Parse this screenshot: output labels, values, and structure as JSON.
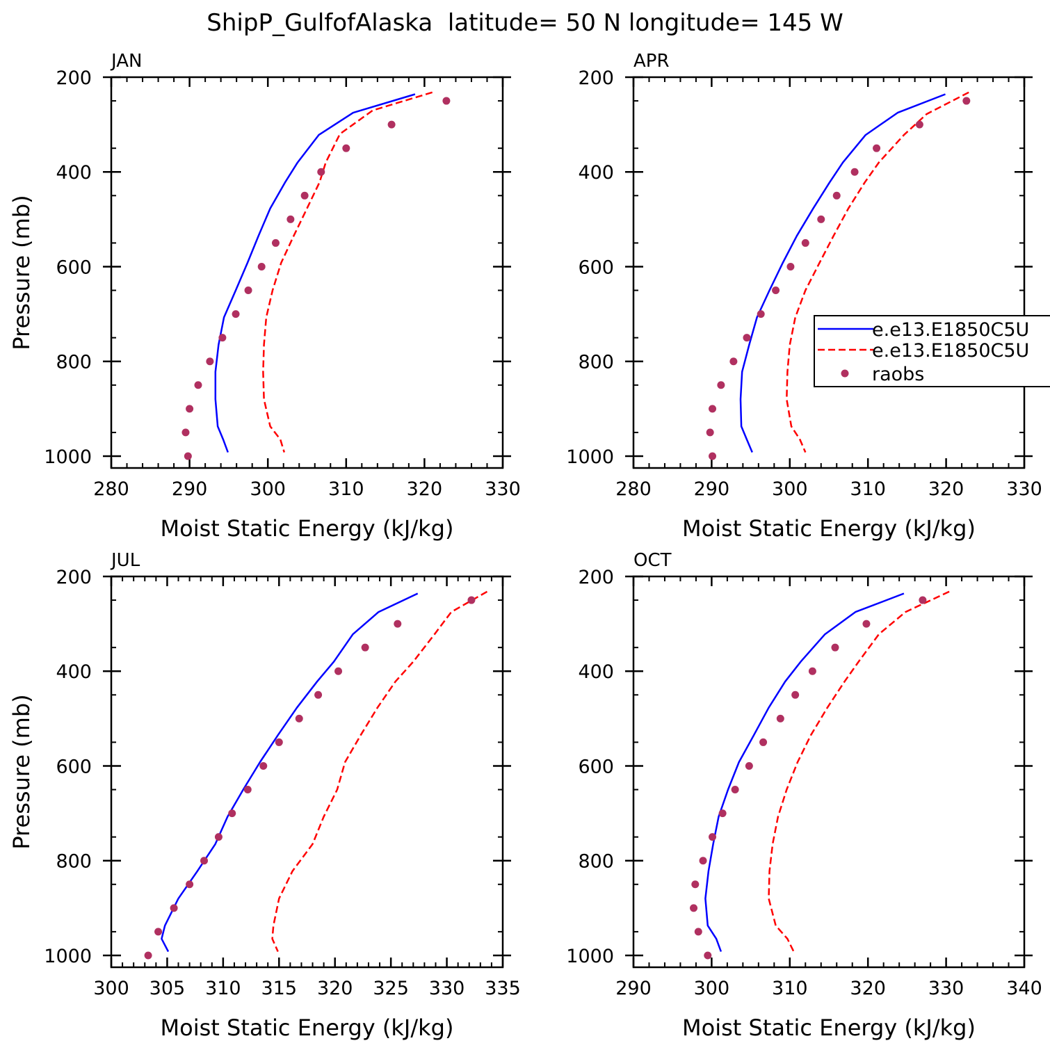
{
  "title": "ShipP_GulfofAlaska  latitude= 50 N longitude= 145 W",
  "legend": {
    "entries": [
      {
        "label": "e.e13.E1850C5U",
        "color": "#0000ff",
        "style": "solid"
      },
      {
        "label": "e.e13.E1850C5U",
        "color": "#ff0000",
        "style": "dashed"
      },
      {
        "label": "raobs",
        "color": "#b03060",
        "style": "marker"
      }
    ]
  },
  "colors": {
    "model_solid": "#0000ff",
    "model_dashed": "#ff0000",
    "raobs": "#b03060"
  },
  "chart_data": [
    {
      "type": "line",
      "panel_label": "JAN",
      "xlabel": "Moist Static Energy (kJ/kg)",
      "ylabel": "Pressure (mb)",
      "xlim": [
        280,
        330
      ],
      "ylim": [
        1025,
        200
      ],
      "xticks": [
        280,
        290,
        300,
        310,
        320,
        330
      ],
      "yticks": [
        200,
        400,
        600,
        800,
        1000
      ],
      "series": [
        {
          "style": "solid",
          "x": [
            318.8,
            310.9,
            306.5,
            303.8,
            302.2,
            300.3,
            298.8,
            297.4,
            295.9,
            294.4,
            293.7,
            293.3,
            293.3,
            293.6,
            294.3,
            294.9
          ],
          "y": [
            236,
            275,
            322,
            380,
            422,
            477,
            535,
            592,
            650,
            707,
            765,
            822,
            880,
            937,
            965,
            992
          ]
        },
        {
          "style": "dashed",
          "x": [
            321.0,
            313.4,
            309.2,
            307.4,
            306.6,
            305.0,
            303.3,
            301.7,
            300.6,
            299.8,
            299.5,
            299.4,
            299.5,
            300.3,
            301.6,
            302.1
          ],
          "y": [
            232,
            270,
            320,
            380,
            422,
            477,
            535,
            592,
            650,
            707,
            765,
            822,
            880,
            937,
            965,
            992
          ]
        }
      ],
      "points": {
        "x": [
          322.8,
          315.8,
          310.0,
          306.8,
          304.7,
          302.9,
          301.0,
          299.2,
          297.5,
          295.9,
          294.2,
          292.6,
          291.1,
          290.0,
          289.5,
          289.8
        ],
        "y": [
          250,
          300,
          350,
          400,
          450,
          500,
          550,
          600,
          650,
          700,
          750,
          800,
          850,
          900,
          950,
          1000
        ]
      }
    },
    {
      "type": "line",
      "panel_label": "APR",
      "xlabel": "Moist Static Energy (kJ/kg)",
      "ylabel": "",
      "xlim": [
        280,
        330
      ],
      "ylim": [
        1025,
        200
      ],
      "xticks": [
        280,
        290,
        300,
        310,
        320,
        330
      ],
      "yticks": [
        200,
        400,
        600,
        800,
        1000
      ],
      "series": [
        {
          "style": "solid",
          "x": [
            319.9,
            313.8,
            309.7,
            306.8,
            305.1,
            303.0,
            300.9,
            299.1,
            297.4,
            295.8,
            294.8,
            293.9,
            293.7,
            293.8,
            294.5,
            295.2
          ],
          "y": [
            236,
            275,
            322,
            380,
            422,
            477,
            535,
            592,
            650,
            707,
            765,
            822,
            880,
            937,
            965,
            992
          ]
        },
        {
          "style": "dashed",
          "x": [
            322.9,
            317.5,
            314.6,
            311.4,
            309.6,
            307.5,
            305.6,
            303.8,
            302.0,
            300.7,
            300.0,
            299.7,
            299.6,
            300.2,
            301.3,
            302.0
          ],
          "y": [
            232,
            278,
            322,
            380,
            422,
            477,
            535,
            592,
            650,
            707,
            765,
            822,
            880,
            937,
            965,
            992
          ]
        }
      ],
      "points": {
        "x": [
          322.6,
          316.6,
          311.1,
          308.3,
          306.0,
          304.0,
          302.0,
          300.1,
          298.2,
          296.3,
          294.5,
          292.8,
          291.2,
          290.1,
          289.8,
          290.1
        ],
        "y": [
          250,
          300,
          350,
          400,
          450,
          500,
          550,
          600,
          650,
          700,
          750,
          800,
          850,
          900,
          950,
          1000
        ]
      }
    },
    {
      "type": "line",
      "panel_label": "JUL",
      "xlabel": "Moist Static Energy (kJ/kg)",
      "ylabel": "Pressure (mb)",
      "xlim": [
        300,
        335
      ],
      "ylim": [
        1025,
        200
      ],
      "xticks": [
        300,
        305,
        310,
        315,
        320,
        325,
        330,
        335
      ],
      "yticks": [
        200,
        400,
        600,
        800,
        1000
      ],
      "series": [
        {
          "style": "solid",
          "x": [
            327.4,
            323.9,
            321.6,
            319.9,
            318.4,
            316.6,
            314.9,
            313.3,
            311.8,
            310.4,
            309.3,
            307.7,
            306.0,
            304.8,
            304.5,
            305.1
          ],
          "y": [
            236,
            275,
            322,
            380,
            422,
            477,
            535,
            592,
            650,
            707,
            765,
            822,
            880,
            937,
            965,
            992
          ]
        },
        {
          "style": "dashed",
          "x": [
            333.6,
            330.4,
            328.9,
            327.0,
            325.4,
            323.8,
            322.3,
            320.9,
            320.2,
            319.0,
            318.0,
            316.2,
            315.0,
            314.5,
            314.4,
            314.9
          ],
          "y": [
            232,
            275,
            322,
            380,
            422,
            477,
            535,
            592,
            650,
            707,
            765,
            822,
            880,
            937,
            965,
            992
          ]
        }
      ],
      "points": {
        "x": [
          332.2,
          325.6,
          322.7,
          320.3,
          318.5,
          316.8,
          315.0,
          313.6,
          312.2,
          310.8,
          309.6,
          308.3,
          307.0,
          305.6,
          304.2,
          303.3
        ],
        "y": [
          250,
          300,
          350,
          400,
          450,
          500,
          550,
          600,
          650,
          700,
          750,
          800,
          850,
          900,
          950,
          1000
        ]
      }
    },
    {
      "type": "line",
      "panel_label": "OCT",
      "xlabel": "Moist Static Energy (kJ/kg)",
      "ylabel": "",
      "xlim": [
        290,
        340
      ],
      "ylim": [
        1025,
        200
      ],
      "xticks": [
        290,
        300,
        310,
        320,
        330,
        340
      ],
      "yticks": [
        200,
        400,
        600,
        800,
        1000
      ],
      "series": [
        {
          "style": "solid",
          "x": [
            324.6,
            318.4,
            314.5,
            311.4,
            309.4,
            307.3,
            305.4,
            303.5,
            302.1,
            300.9,
            300.2,
            299.6,
            299.2,
            299.5,
            300.6,
            301.2
          ],
          "y": [
            236,
            275,
            322,
            380,
            422,
            477,
            535,
            592,
            650,
            707,
            765,
            822,
            880,
            937,
            965,
            992
          ]
        },
        {
          "style": "dashed",
          "x": [
            330.4,
            324.8,
            321.4,
            318.8,
            317.0,
            314.8,
            312.7,
            311.0,
            309.6,
            308.5,
            307.8,
            307.4,
            307.3,
            308.2,
            309.7,
            310.5
          ],
          "y": [
            232,
            275,
            322,
            380,
            422,
            477,
            535,
            592,
            650,
            707,
            765,
            822,
            880,
            937,
            965,
            992
          ]
        }
      ],
      "points": {
        "x": [
          327.0,
          319.8,
          315.8,
          312.9,
          310.7,
          308.8,
          306.6,
          304.8,
          303.0,
          301.4,
          300.1,
          298.9,
          297.9,
          297.7,
          298.3,
          299.5
        ],
        "y": [
          250,
          300,
          350,
          400,
          450,
          500,
          550,
          600,
          650,
          700,
          750,
          800,
          850,
          900,
          950,
          1000
        ]
      }
    }
  ]
}
